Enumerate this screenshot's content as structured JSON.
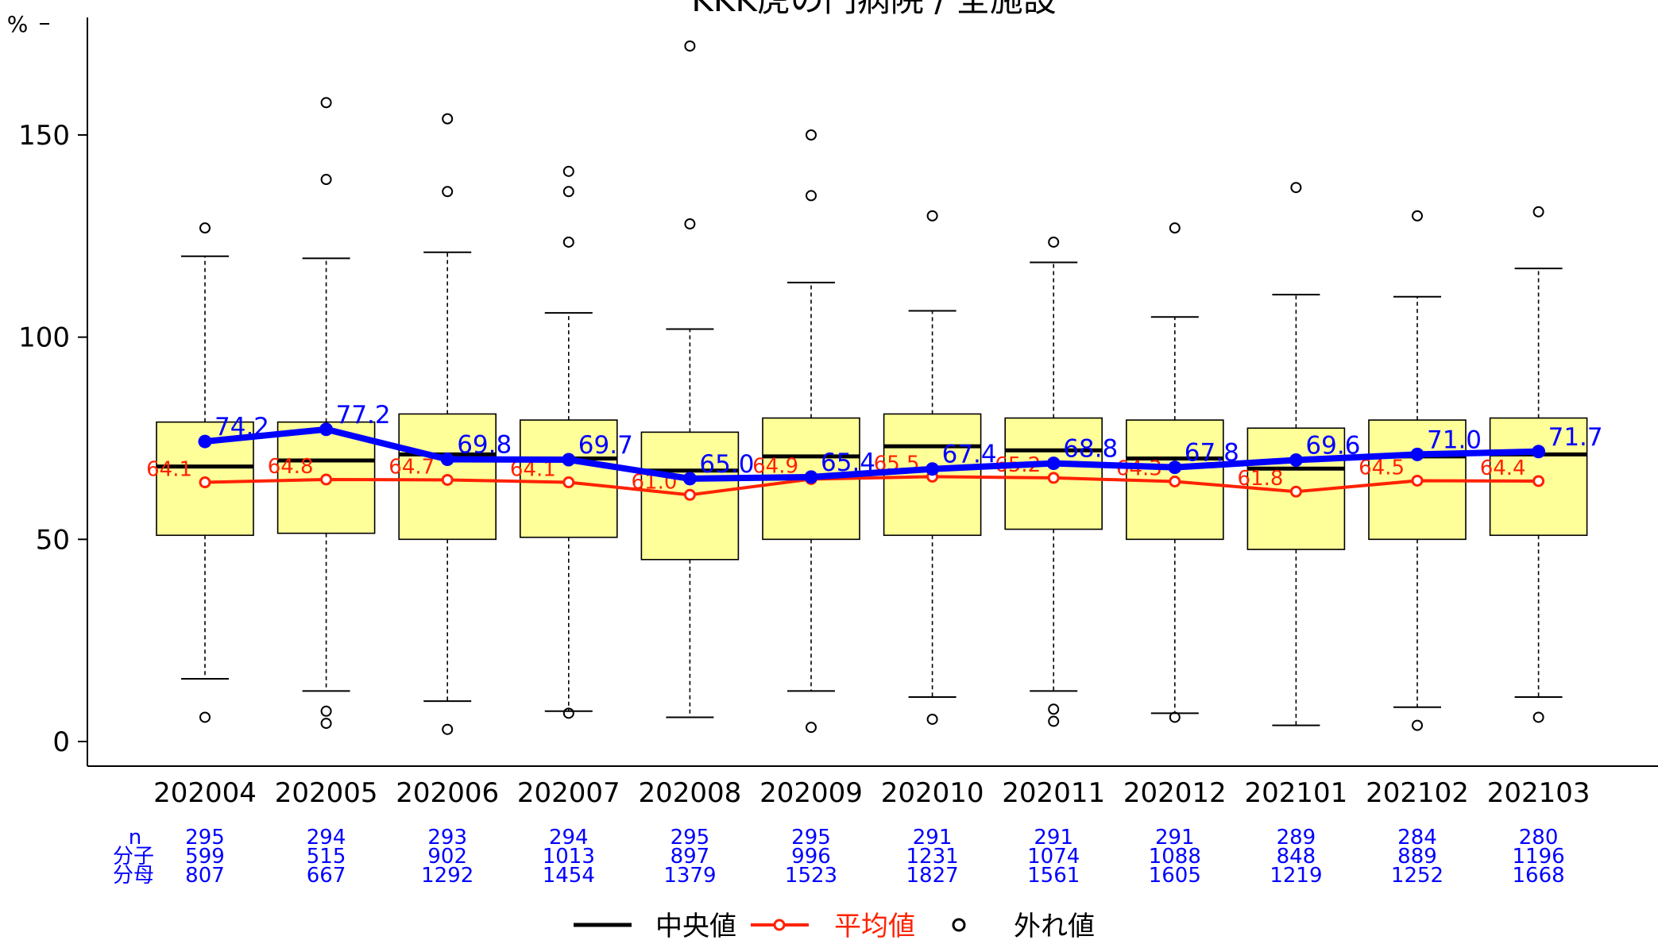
{
  "title": "KKK虎の門病院 / 全施設",
  "colors": {
    "box_fill": "#FFFF99",
    "mean_line": "#FF2200",
    "hospital_line": "#0000FF",
    "count_text": "#0000FF",
    "axis": "#000000"
  },
  "chart_data": {
    "type": "box",
    "title": "KKK虎の門病院 / 全施設",
    "ylabel": "%",
    "ylim": [
      -6,
      178
    ],
    "yticks": [
      0,
      50,
      100,
      150
    ],
    "categories": [
      "202004",
      "202005",
      "202006",
      "202007",
      "202008",
      "202009",
      "202010",
      "202011",
      "202012",
      "202101",
      "202102",
      "202103"
    ],
    "boxes": [
      {
        "lower_whisker": 15.5,
        "q1": 51,
        "median": 68,
        "q3": 79,
        "upper_whisker": 120,
        "outliers": [
          127,
          6
        ]
      },
      {
        "lower_whisker": 12.5,
        "q1": 51.5,
        "median": 69.5,
        "q3": 79,
        "upper_whisker": 119.5,
        "outliers": [
          158,
          139,
          7.5,
          4.5
        ]
      },
      {
        "lower_whisker": 10,
        "q1": 50,
        "median": 71,
        "q3": 81,
        "upper_whisker": 121,
        "outliers": [
          154,
          136,
          3
        ]
      },
      {
        "lower_whisker": 7.5,
        "q1": 50.5,
        "median": 70,
        "q3": 79.5,
        "upper_whisker": 106,
        "outliers": [
          141,
          136,
          123.5,
          7
        ]
      },
      {
        "lower_whisker": 6,
        "q1": 45,
        "median": 67,
        "q3": 76.5,
        "upper_whisker": 102,
        "outliers": [
          172,
          128
        ]
      },
      {
        "lower_whisker": 12.5,
        "q1": 50,
        "median": 70.5,
        "q3": 80,
        "upper_whisker": 113.5,
        "outliers": [
          150,
          135,
          3.5
        ]
      },
      {
        "lower_whisker": 11,
        "q1": 51,
        "median": 73,
        "q3": 81,
        "upper_whisker": 106.5,
        "outliers": [
          130,
          5.5
        ]
      },
      {
        "lower_whisker": 12.5,
        "q1": 52.5,
        "median": 72,
        "q3": 80,
        "upper_whisker": 118.5,
        "outliers": [
          123.5,
          8,
          5
        ]
      },
      {
        "lower_whisker": 7,
        "q1": 50,
        "median": 70,
        "q3": 79.5,
        "upper_whisker": 105,
        "outliers": [
          127,
          6
        ]
      },
      {
        "lower_whisker": 4,
        "q1": 47.5,
        "median": 67.5,
        "q3": 77.5,
        "upper_whisker": 110.5,
        "outliers": [
          137
        ]
      },
      {
        "lower_whisker": 8.5,
        "q1": 50,
        "median": 70.5,
        "q3": 79.5,
        "upper_whisker": 110,
        "outliers": [
          130,
          4
        ]
      },
      {
        "lower_whisker": 11,
        "q1": 51,
        "median": 71,
        "q3": 80,
        "upper_whisker": 117,
        "outliers": [
          131,
          6
        ]
      }
    ],
    "series": [
      {
        "name": "平均値",
        "values": [
          64.1,
          64.8,
          64.7,
          64.1,
          61.0,
          64.9,
          65.5,
          65.2,
          64.3,
          61.8,
          64.5,
          64.4
        ],
        "labels": [
          "64.1",
          "64.8",
          "64.7",
          "64.1",
          "61.0",
          "64.9",
          "65.5",
          "65.2",
          "64.3",
          "61.8",
          "64.5",
          "64.4"
        ]
      },
      {
        "values": [
          74.2,
          77.2,
          69.8,
          69.7,
          65.0,
          65.4,
          67.4,
          68.8,
          67.8,
          69.6,
          71.0,
          71.7
        ],
        "labels": [
          "74.2",
          "77.2",
          "69.8",
          "69.7",
          "65.0",
          "65.4",
          "67.4",
          "68.8",
          "67.8",
          "69.6",
          "71.0",
          "71.7"
        ]
      }
    ],
    "table": {
      "row_labels": [
        "n",
        "分子",
        "分母"
      ],
      "n": [
        "295",
        "294",
        "293",
        "294",
        "295",
        "295",
        "291",
        "291",
        "291",
        "289",
        "284",
        "280"
      ],
      "numerator": [
        "599",
        "515",
        "902",
        "1013",
        "897",
        "996",
        "1231",
        "1074",
        "1088",
        "848",
        "889",
        "1196"
      ],
      "denominator": [
        "807",
        "667",
        "1292",
        "1454",
        "1379",
        "1523",
        "1827",
        "1561",
        "1605",
        "1219",
        "1252",
        "1668"
      ]
    },
    "legend": {
      "position": "bottom",
      "items": [
        {
          "label": "中央値",
          "color": "#000000"
        },
        {
          "label": "平均値",
          "color": "#FF2200"
        },
        {
          "label": "外れ値",
          "color": "#000000"
        }
      ]
    }
  }
}
